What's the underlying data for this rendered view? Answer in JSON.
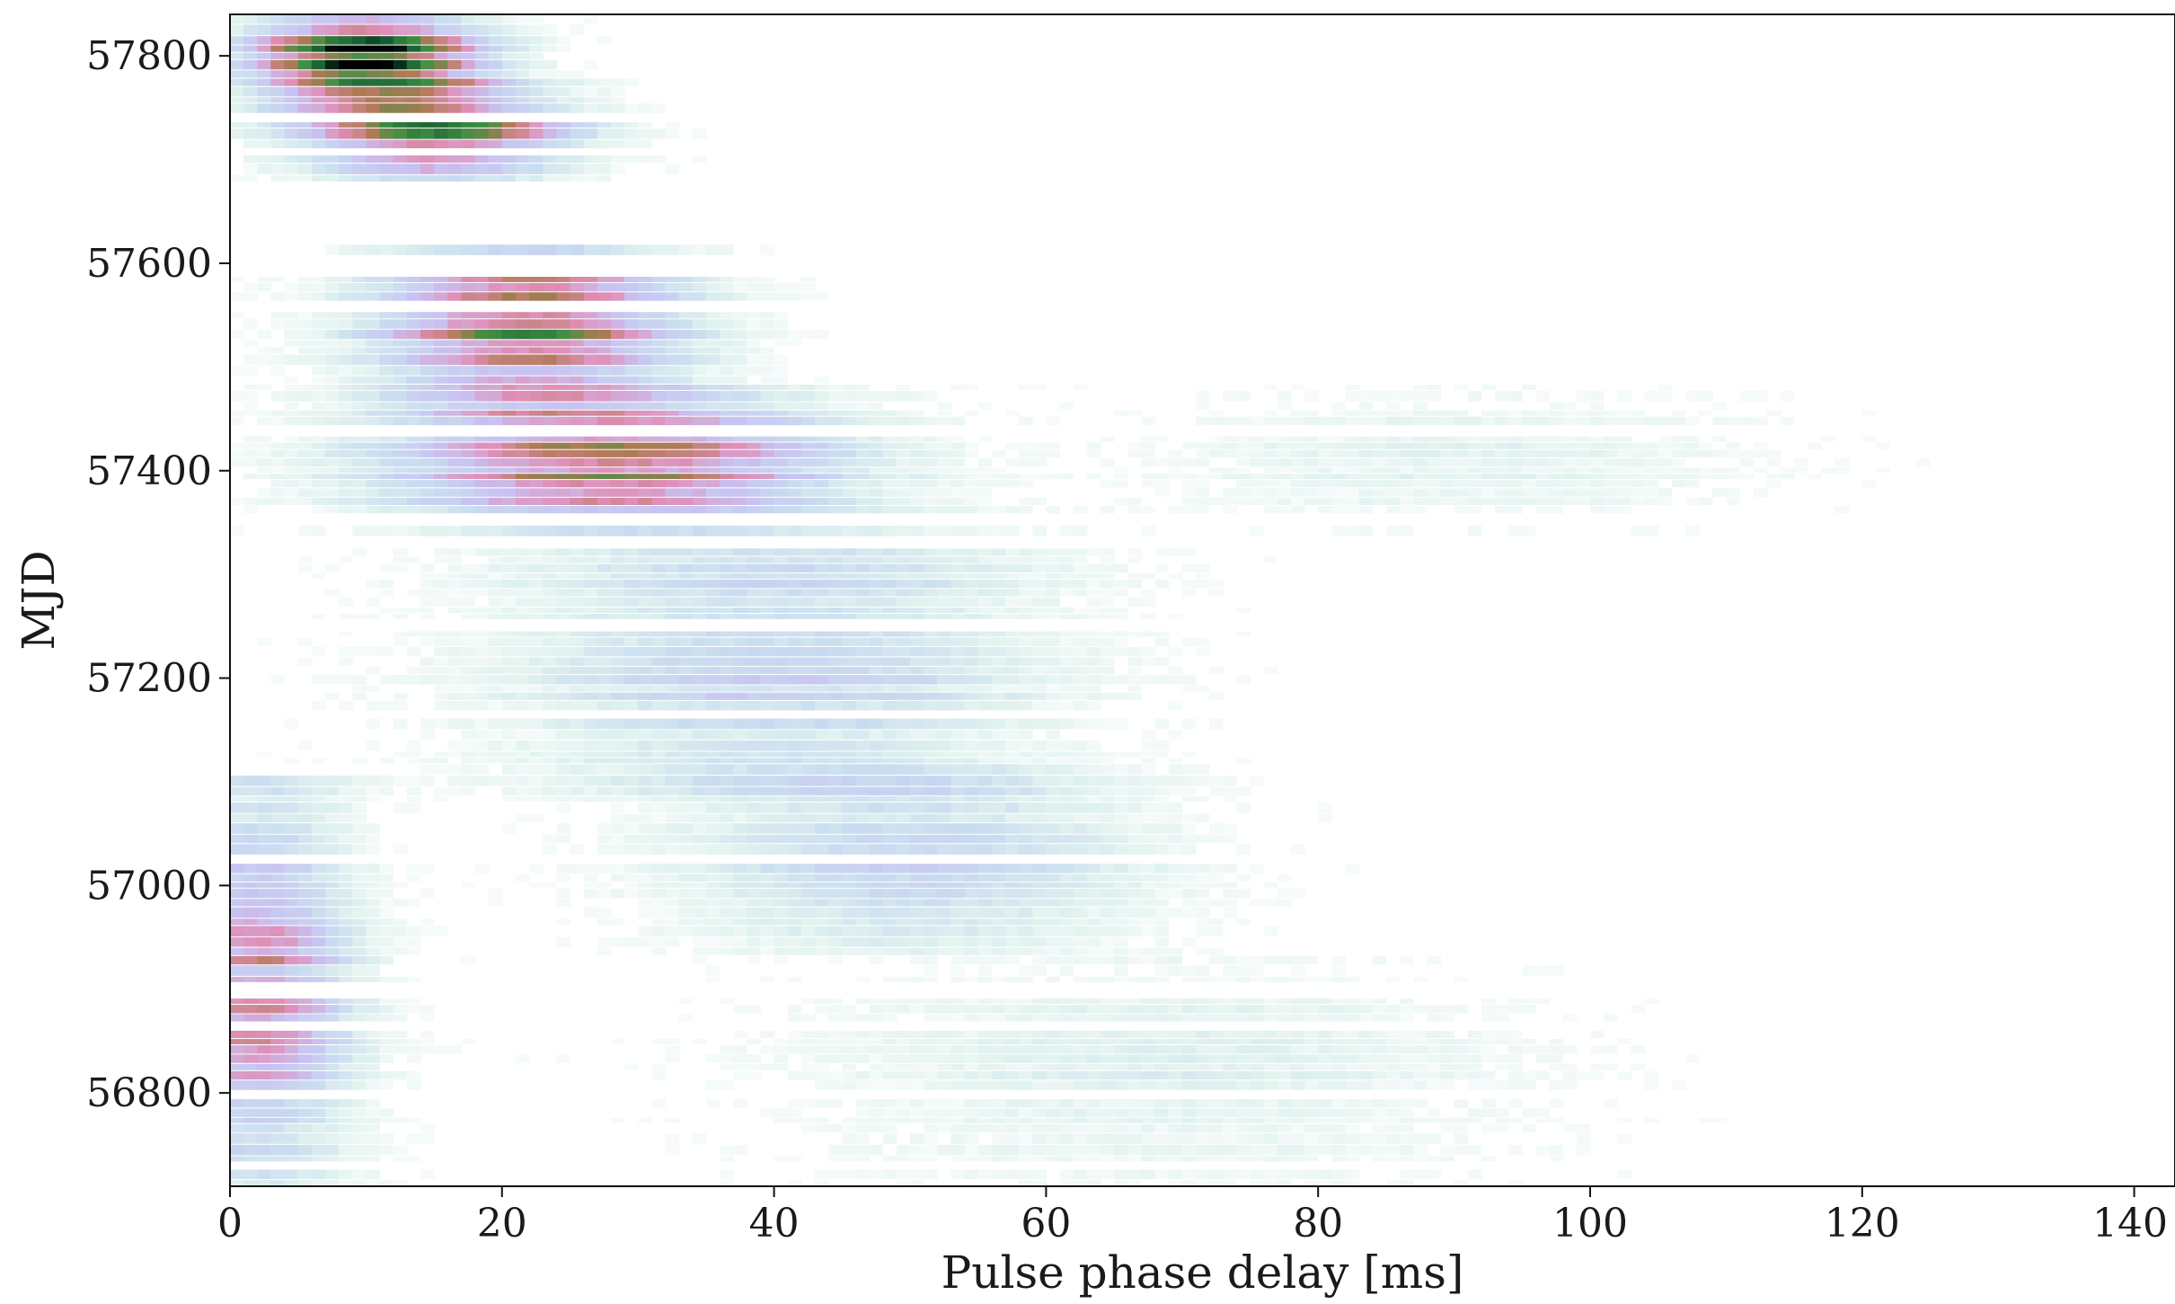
{
  "chart_data": {
    "type": "heatmap",
    "title": "",
    "xlabel": "Pulse phase delay [ms]",
    "ylabel": "MJD",
    "xlim": [
      0,
      143
    ],
    "ylim": [
      56710,
      57840
    ],
    "x_ticks": [
      0,
      20,
      40,
      60,
      80,
      100,
      120,
      140
    ],
    "y_ticks": [
      56800,
      57000,
      57200,
      57400,
      57600,
      57800
    ],
    "x_tick_labels": [
      "0",
      "20",
      "40",
      "60",
      "80",
      "100",
      "120",
      "140"
    ],
    "y_tick_labels": [
      "56800",
      "57000",
      "57200",
      "57400",
      "57600",
      "57800"
    ],
    "grid": false,
    "colormap": "cubehelix_r (white → teal → blue/lavender → pink → green → black)",
    "colormap_stops": [
      "#ffffff",
      "#e0f2ef",
      "#c9dcf0",
      "#c8c2f2",
      "#e08fb8",
      "#b07a55",
      "#3f8f44",
      "#145a32",
      "#000000"
    ],
    "data_gaps_mjd": [
      [
        57620,
        57665
      ],
      [
        57665,
        57675
      ]
    ],
    "ridges": [
      {
        "mjd_range": [
          56710,
          57090
        ],
        "center_ms": 2,
        "width_ms": 5,
        "peak_intensity": 0.45
      },
      {
        "mjd_range": [
          56710,
          56920
        ],
        "center_ms": 68,
        "width_ms": 18,
        "peak_intensity": 0.12
      },
      {
        "mjd_range": [
          56950,
          57100
        ],
        "center_ms": 50,
        "width_ms": 12,
        "peak_intensity": 0.3
      },
      {
        "mjd_range": [
          57090,
          57350
        ],
        "center_ms": 40,
        "width_ms": 14,
        "peak_intensity": 0.28
      },
      {
        "mjd_range": [
          57340,
          57470
        ],
        "center_ms": 28,
        "width_ms": 12,
        "peak_intensity": 0.55
      },
      {
        "mjd_range": [
          57470,
          57620
        ],
        "center_ms": 22,
        "width_ms": 8,
        "peak_intensity": 0.62
      },
      {
        "mjd_range": [
          57680,
          57760
        ],
        "center_ms": 15,
        "width_ms": 7,
        "peak_intensity": 0.72
      },
      {
        "mjd_range": [
          57760,
          57840
        ],
        "center_ms": 10,
        "width_ms": 6,
        "peak_intensity": 0.95
      },
      {
        "mjd_range": [
          57350,
          57470
        ],
        "center_ms": 90,
        "width_ms": 15,
        "peak_intensity": 0.1
      }
    ]
  }
}
